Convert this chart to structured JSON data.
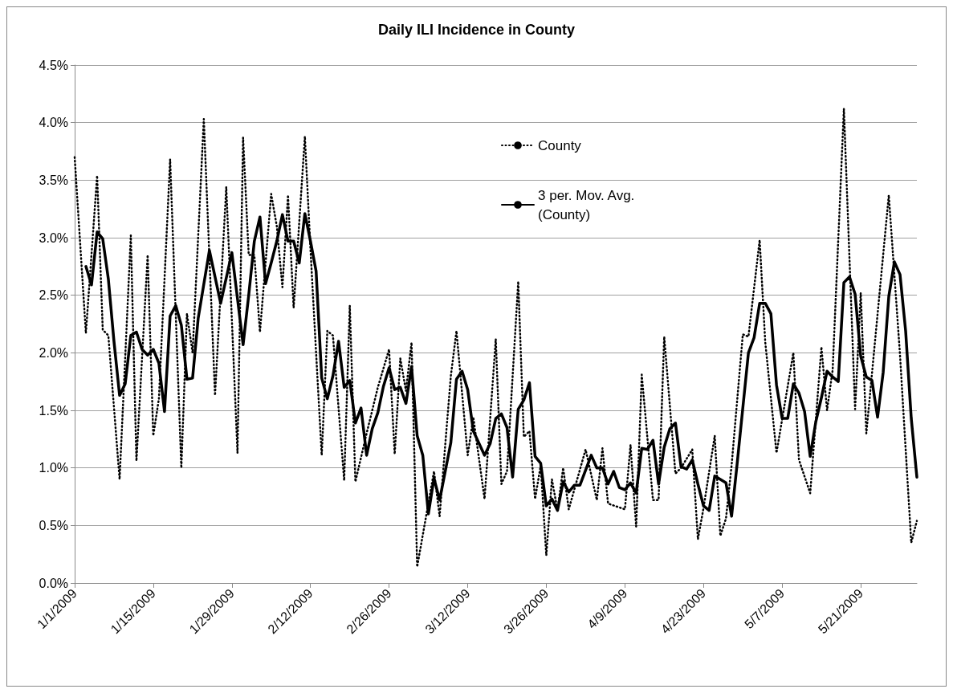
{
  "chart_data": {
    "type": "line",
    "title": "Daily ILI Incidence in County",
    "xlim": [
      "2009-01-01",
      "2009-05-31"
    ],
    "xticks": [
      {
        "value": "2009-01-01",
        "label": "1/1/2009"
      },
      {
        "value": "2009-01-15",
        "label": "1/15/2009"
      },
      {
        "value": "2009-01-29",
        "label": "1/29/2009"
      },
      {
        "value": "2009-02-12",
        "label": "2/12/2009"
      },
      {
        "value": "2009-02-26",
        "label": "2/26/2009"
      },
      {
        "value": "2009-03-12",
        "label": "3/12/2009"
      },
      {
        "value": "2009-03-26",
        "label": "3/26/2009"
      },
      {
        "value": "2009-04-09",
        "label": "4/9/2009"
      },
      {
        "value": "2009-04-23",
        "label": "4/23/2009"
      },
      {
        "value": "2009-05-07",
        "label": "5/7/2009"
      },
      {
        "value": "2009-05-21",
        "label": "5/21/2009"
      }
    ],
    "ylim": [
      0,
      4.5
    ],
    "yticks": [
      {
        "value": 0,
        "label": "0.0%"
      },
      {
        "value": 0.5,
        "label": "0.5%"
      },
      {
        "value": 1,
        "label": "1.0%"
      },
      {
        "value": 1.5,
        "label": "1.5%"
      },
      {
        "value": 2,
        "label": "2.0%"
      },
      {
        "value": 2.5,
        "label": "2.5%"
      },
      {
        "value": 3,
        "label": "3.0%"
      },
      {
        "value": 3.5,
        "label": "3.5%"
      },
      {
        "value": 4,
        "label": "4.0%"
      },
      {
        "value": 4.5,
        "label": "4.5%"
      }
    ],
    "grid": "y",
    "legend": "top right",
    "marker": "none",
    "series": [
      {
        "name": "County",
        "color": "#000000",
        "line_style": "dotted",
        "x": [
          "2009-01-01",
          "2009-01-03",
          "2009-01-05",
          "2009-01-06",
          "2009-01-07",
          "2009-01-09",
          "2009-01-11",
          "2009-01-12",
          "2009-01-14",
          "2009-01-15",
          "2009-01-16",
          "2009-01-18",
          "2009-01-20",
          "2009-01-21",
          "2009-01-22",
          "2009-01-24",
          "2009-01-26",
          "2009-01-28",
          "2009-01-30",
          "2009-01-31",
          "2009-02-01",
          "2009-02-02",
          "2009-02-03",
          "2009-02-05",
          "2009-02-06",
          "2009-02-07",
          "2009-02-08",
          "2009-02-09",
          "2009-02-11",
          "2009-02-12",
          "2009-02-13",
          "2009-02-14",
          "2009-02-15",
          "2009-02-16",
          "2009-02-18",
          "2009-02-19",
          "2009-02-20",
          "2009-02-22",
          "2009-02-24",
          "2009-02-26",
          "2009-02-27",
          "2009-02-28",
          "2009-03-01",
          "2009-03-02",
          "2009-03-03",
          "2009-03-06",
          "2009-03-07",
          "2009-03-08",
          "2009-03-09",
          "2009-03-10",
          "2009-03-12",
          "2009-03-13",
          "2009-03-15",
          "2009-03-17",
          "2009-03-18",
          "2009-03-19",
          "2009-03-21",
          "2009-03-22",
          "2009-03-23",
          "2009-03-24",
          "2009-03-25",
          "2009-03-26",
          "2009-03-27",
          "2009-03-28",
          "2009-03-29",
          "2009-03-30",
          "2009-04-02",
          "2009-04-04",
          "2009-04-05",
          "2009-04-06",
          "2009-04-09",
          "2009-04-10",
          "2009-04-11",
          "2009-04-12",
          "2009-04-14",
          "2009-04-15",
          "2009-04-16",
          "2009-04-18",
          "2009-04-19",
          "2009-04-21",
          "2009-04-22",
          "2009-04-23",
          "2009-04-25",
          "2009-04-26",
          "2009-04-27",
          "2009-04-28",
          "2009-04-30",
          "2009-05-01",
          "2009-05-03",
          "2009-05-04",
          "2009-05-06",
          "2009-05-09",
          "2009-05-10",
          "2009-05-12",
          "2009-05-14",
          "2009-05-15",
          "2009-05-16",
          "2009-05-18",
          "2009-05-20",
          "2009-05-21",
          "2009-05-22",
          "2009-05-26",
          "2009-05-28",
          "2009-05-30",
          "2009-05-31"
        ],
        "values": [
          3.7,
          2.17,
          3.54,
          2.2,
          2.15,
          0.9,
          3.02,
          1.06,
          2.85,
          1.28,
          1.6,
          3.68,
          1.0,
          2.34,
          2.0,
          4.03,
          1.63,
          3.44,
          1.13,
          3.87,
          2.85,
          2.85,
          2.18,
          3.38,
          3.1,
          2.57,
          3.37,
          2.39,
          3.88,
          2.9,
          2.0,
          1.11,
          2.19,
          2.15,
          0.89,
          2.41,
          0.88,
          1.3,
          1.7,
          2.03,
          1.12,
          1.95,
          1.67,
          2.09,
          0.14,
          0.97,
          0.58,
          1.2,
          1.8,
          2.19,
          1.11,
          1.44,
          0.73,
          2.12,
          0.86,
          0.97,
          2.62,
          1.27,
          1.32,
          0.73,
          1.02,
          0.24,
          0.9,
          0.63,
          1.0,
          0.64,
          1.16,
          0.72,
          1.17,
          0.69,
          0.64,
          1.2,
          0.49,
          1.81,
          0.72,
          0.72,
          2.14,
          0.95,
          1.0,
          1.16,
          0.38,
          0.65,
          1.28,
          0.41,
          0.56,
          1.02,
          2.16,
          2.14,
          2.98,
          2.09,
          1.13,
          2.0,
          1.07,
          0.78,
          2.05,
          1.5,
          1.85,
          4.12,
          1.51,
          2.52,
          1.3,
          3.37,
          1.98,
          0.35,
          0.54
        ]
      },
      {
        "name": "3 per. Mov. Avg. (County)",
        "color": "#000000",
        "line_style": "solid",
        "x": [
          "2009-01-03",
          "2009-01-04",
          "2009-01-05",
          "2009-01-06",
          "2009-01-07",
          "2009-01-08",
          "2009-01-09",
          "2009-01-10",
          "2009-01-11",
          "2009-01-12",
          "2009-01-13",
          "2009-01-14",
          "2009-01-15",
          "2009-01-16",
          "2009-01-17",
          "2009-01-18",
          "2009-01-19",
          "2009-01-20",
          "2009-01-21",
          "2009-01-22",
          "2009-01-23",
          "2009-01-25",
          "2009-01-27",
          "2009-01-29",
          "2009-01-31",
          "2009-02-01",
          "2009-02-02",
          "2009-02-03",
          "2009-02-04",
          "2009-02-05",
          "2009-02-06",
          "2009-02-07",
          "2009-02-08",
          "2009-02-09",
          "2009-02-10",
          "2009-02-11",
          "2009-02-12",
          "2009-02-13",
          "2009-02-14",
          "2009-02-15",
          "2009-02-16",
          "2009-02-17",
          "2009-02-18",
          "2009-02-19",
          "2009-02-20",
          "2009-02-21",
          "2009-02-22",
          "2009-02-23",
          "2009-02-24",
          "2009-02-25",
          "2009-02-26",
          "2009-02-27",
          "2009-02-28",
          "2009-03-01",
          "2009-03-02",
          "2009-03-03",
          "2009-03-04",
          "2009-03-05",
          "2009-03-06",
          "2009-03-07",
          "2009-03-09",
          "2009-03-10",
          "2009-03-11",
          "2009-03-12",
          "2009-03-13",
          "2009-03-15",
          "2009-03-16",
          "2009-03-17",
          "2009-03-18",
          "2009-03-19",
          "2009-03-20",
          "2009-03-21",
          "2009-03-22",
          "2009-03-23",
          "2009-03-24",
          "2009-03-25",
          "2009-03-26",
          "2009-03-27",
          "2009-03-28",
          "2009-03-29",
          "2009-03-30",
          "2009-03-31",
          "2009-04-01",
          "2009-04-03",
          "2009-04-04",
          "2009-04-05",
          "2009-04-06",
          "2009-04-07",
          "2009-04-08",
          "2009-04-09",
          "2009-04-10",
          "2009-04-11",
          "2009-04-12",
          "2009-04-13",
          "2009-04-14",
          "2009-04-15",
          "2009-04-16",
          "2009-04-17",
          "2009-04-18",
          "2009-04-19",
          "2009-04-20",
          "2009-04-21",
          "2009-04-22",
          "2009-04-23",
          "2009-04-24",
          "2009-04-25",
          "2009-04-26",
          "2009-04-27",
          "2009-04-28",
          "2009-04-29",
          "2009-04-30",
          "2009-05-01",
          "2009-05-02",
          "2009-05-03",
          "2009-05-04",
          "2009-05-05",
          "2009-05-06",
          "2009-05-07",
          "2009-05-08",
          "2009-05-09",
          "2009-05-10",
          "2009-05-11",
          "2009-05-12",
          "2009-05-13",
          "2009-05-14",
          "2009-05-15",
          "2009-05-16",
          "2009-05-17",
          "2009-05-18",
          "2009-05-19",
          "2009-05-20",
          "2009-05-21",
          "2009-05-22",
          "2009-05-23",
          "2009-05-24",
          "2009-05-25",
          "2009-05-26",
          "2009-05-27",
          "2009-05-28",
          "2009-05-29",
          "2009-05-30",
          "2009-05-31"
        ],
        "values": [
          2.75,
          2.59,
          3.05,
          2.99,
          2.64,
          2.1,
          1.63,
          1.73,
          2.15,
          2.18,
          2.03,
          1.98,
          2.03,
          1.91,
          1.49,
          2.32,
          2.41,
          2.24,
          1.77,
          1.78,
          2.3,
          2.89,
          2.43,
          2.87,
          2.07,
          2.5,
          2.97,
          3.18,
          2.6,
          2.78,
          2.97,
          3.2,
          2.97,
          2.97,
          2.78,
          3.21,
          2.97,
          2.71,
          1.78,
          1.6,
          1.8,
          2.1,
          1.7,
          1.76,
          1.39,
          1.52,
          1.11,
          1.34,
          1.48,
          1.71,
          1.87,
          1.68,
          1.7,
          1.56,
          1.88,
          1.28,
          1.11,
          0.6,
          0.91,
          0.72,
          1.22,
          1.77,
          1.84,
          1.68,
          1.32,
          1.11,
          1.21,
          1.43,
          1.47,
          1.35,
          0.92,
          1.51,
          1.59,
          1.74,
          1.1,
          1.04,
          0.67,
          0.73,
          0.63,
          0.88,
          0.79,
          0.85,
          0.85,
          1.11,
          1.0,
          1.0,
          0.86,
          0.97,
          0.83,
          0.81,
          0.87,
          0.78,
          1.17,
          1.16,
          1.24,
          0.86,
          1.18,
          1.34,
          1.39,
          1.01,
          0.99,
          1.07,
          0.86,
          0.67,
          0.63,
          0.93,
          0.9,
          0.87,
          0.58,
          1.04,
          1.52,
          2.0,
          2.13,
          2.43,
          2.43,
          2.34,
          1.72,
          1.43,
          1.43,
          1.73,
          1.65,
          1.49,
          1.1,
          1.4,
          1.61,
          1.84,
          1.79,
          1.75,
          2.61,
          2.66,
          2.51,
          1.97,
          1.79,
          1.76,
          1.44,
          1.83,
          2.49,
          2.79,
          2.68,
          2.19,
          1.43,
          0.92
        ]
      }
    ]
  }
}
